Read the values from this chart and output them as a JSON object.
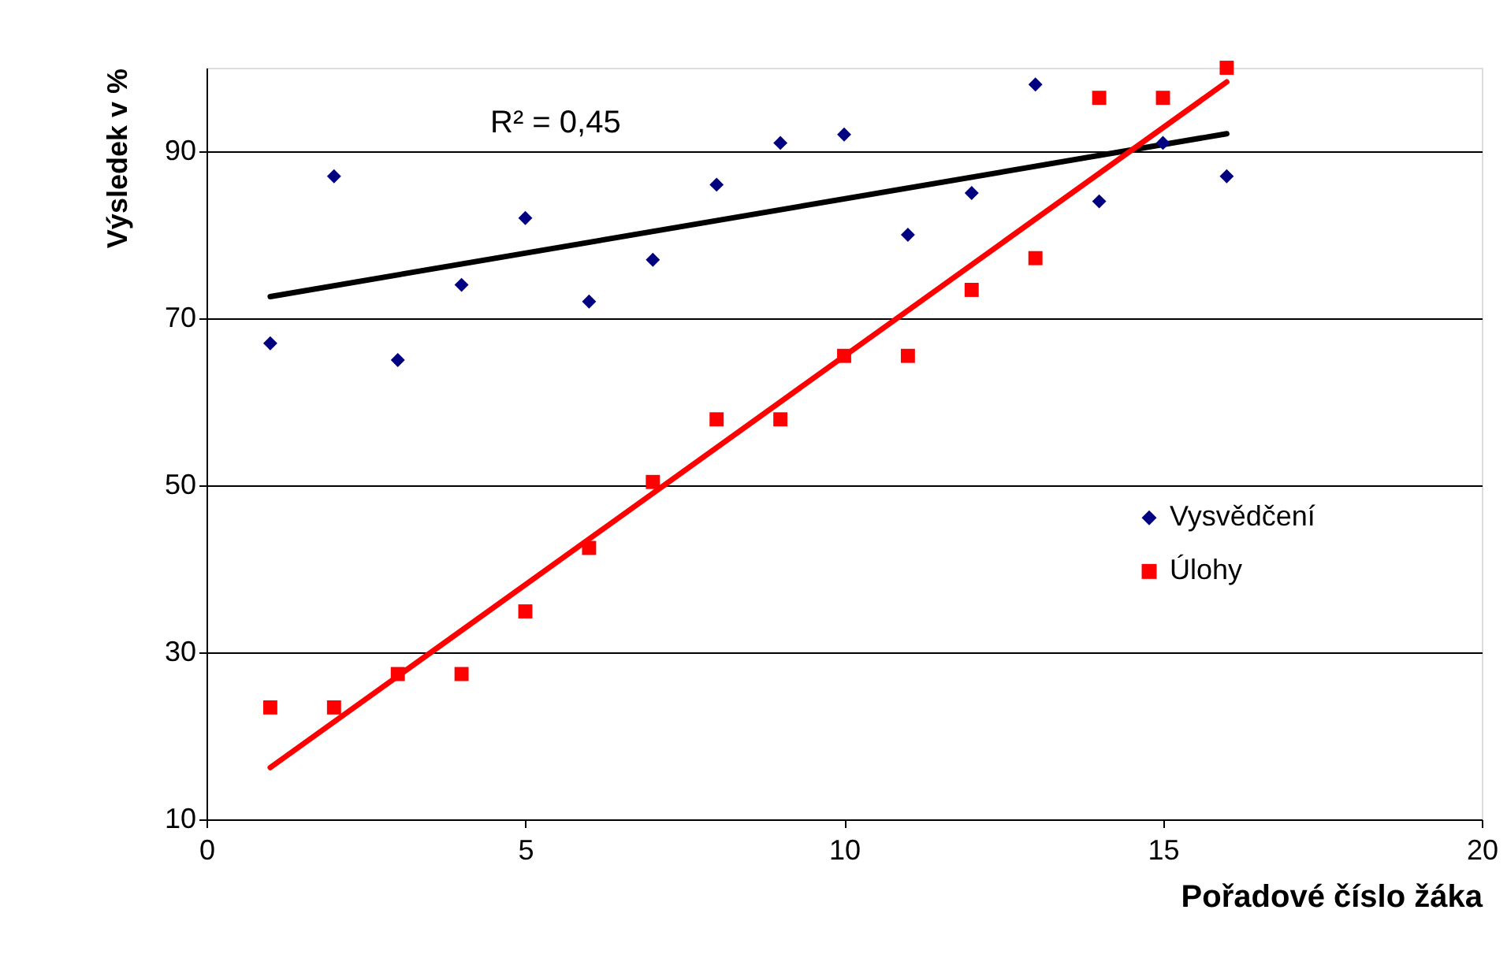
{
  "chart_data": {
    "type": "scatter",
    "xlabel": "Pořadové číslo žáka",
    "ylabel": "Výsledek v %",
    "xlim": [
      0,
      20
    ],
    "xticks": [
      0,
      5,
      10,
      15,
      20
    ],
    "ylim": [
      10,
      100
    ],
    "yticks": [
      10,
      30,
      50,
      70,
      90
    ],
    "grid": "y",
    "legend": "right",
    "annotations": [
      "R² = 0,45"
    ],
    "series": [
      {
        "name": "Vysvědčení",
        "marker": "diamond",
        "color": "#000080",
        "x": [
          1,
          2,
          3,
          4,
          5,
          6,
          7,
          8,
          9,
          10,
          11,
          12,
          13,
          14,
          15,
          16
        ],
        "values": [
          67,
          87,
          65,
          74,
          82,
          72,
          77,
          86,
          91,
          92,
          80,
          85,
          98,
          84,
          91,
          87
        ]
      },
      {
        "name": "Úlohy",
        "marker": "square",
        "color": "#ff0000",
        "x": [
          1,
          2,
          3,
          4,
          5,
          6,
          7,
          8,
          9,
          10,
          11,
          12,
          13,
          14,
          15,
          16
        ],
        "values": [
          23.4,
          23.4,
          27.4,
          27.4,
          34.9,
          42.5,
          50.4,
          57.9,
          57.9,
          65.5,
          65.5,
          73.4,
          77.2,
          96.4,
          96.4,
          100
        ]
      },
      {
        "type": "line",
        "color": "#000000",
        "x": [
          1,
          16
        ],
        "values": [
          72.6,
          92.1
        ]
      },
      {
        "type": "line",
        "color": "#ff0000",
        "x": [
          1,
          16
        ],
        "values": [
          16.2,
          98.3
        ]
      }
    ]
  }
}
